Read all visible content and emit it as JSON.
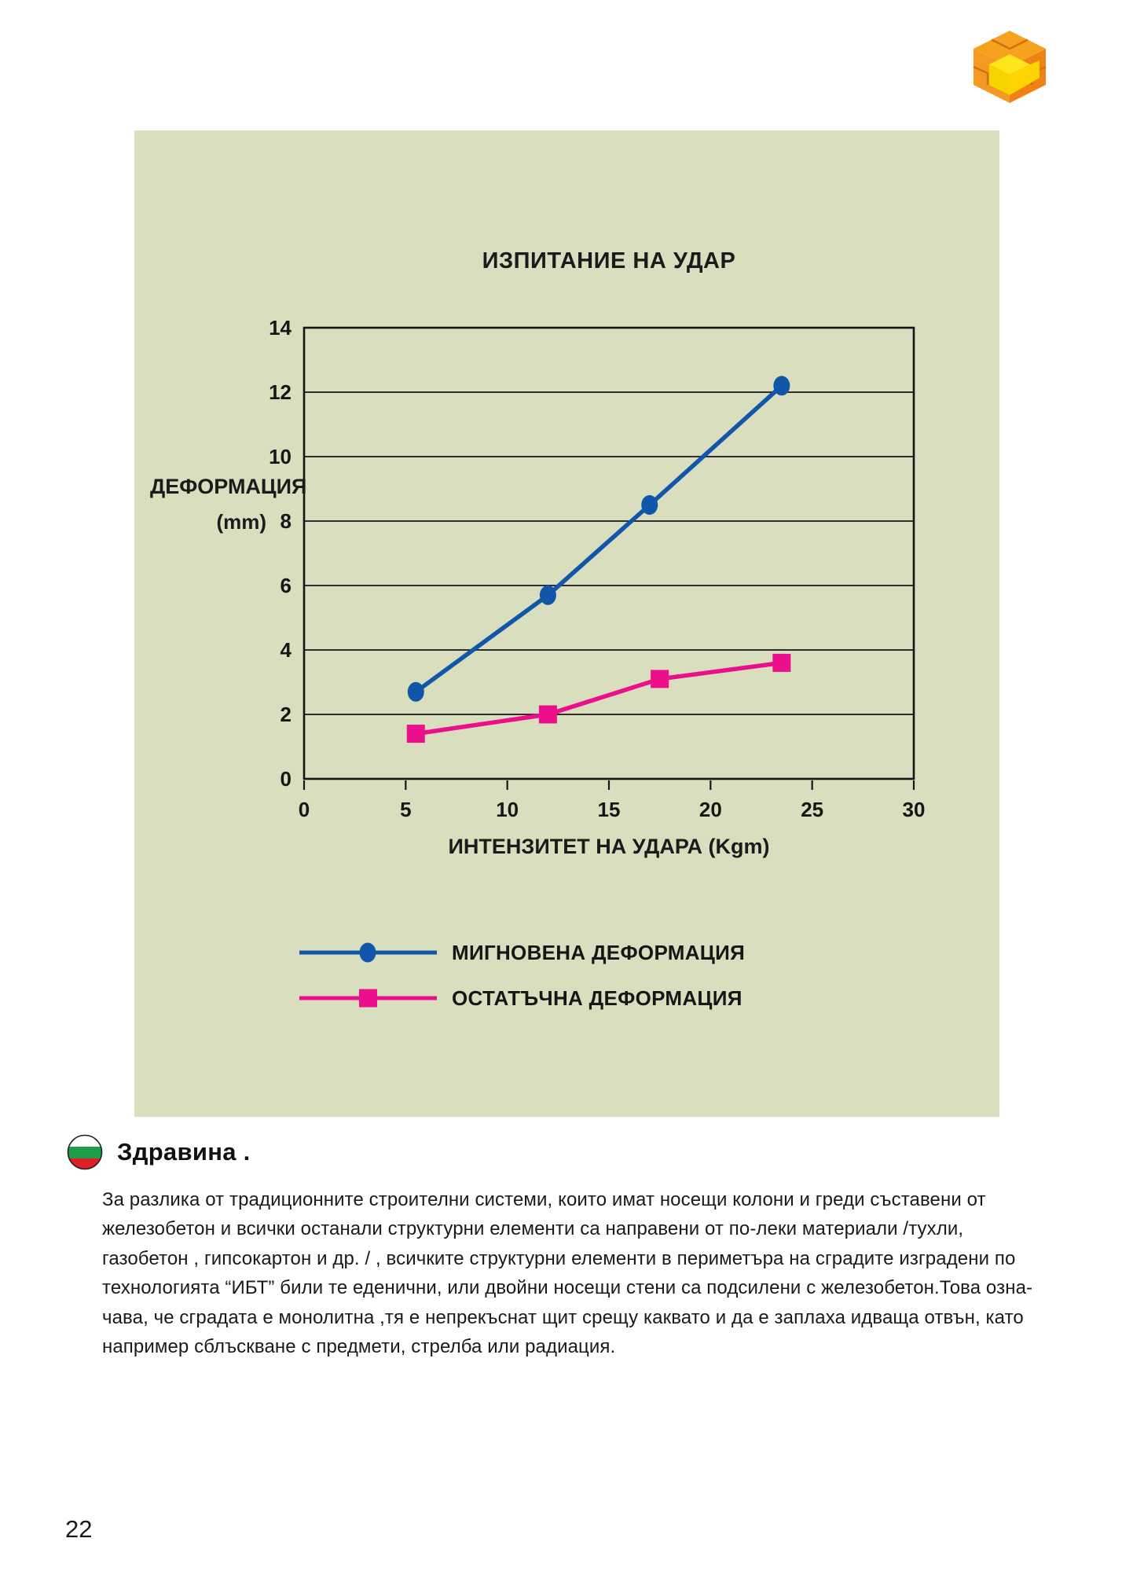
{
  "page": {
    "number": "22"
  },
  "icons": {
    "logo": "puzzle-cube-logo",
    "section_bullet": "bulgaria-flag-circle"
  },
  "colors": {
    "panel_bg": "#d9dfbe",
    "series_blue": "#1156a8",
    "series_pink": "#ec0f8c",
    "logo_orange": "#f29222",
    "logo_yellow": "#ffe312",
    "flag_white": "#ffffff",
    "flag_green": "#1e9e49",
    "flag_red": "#df1f26"
  },
  "chart_data": {
    "type": "line",
    "title": "ИЗПИТАНИЕ НА УДАР",
    "xlabel": "ИНТЕНЗИТЕТ НА УДАРА (Kgm)",
    "ylabel": "ДЕФОРМАЦИЯ",
    "ylabel_units": "(mm)",
    "xlim": [
      0,
      30
    ],
    "ylim": [
      0,
      14
    ],
    "xticks": [
      0,
      5,
      10,
      15,
      20,
      25,
      30
    ],
    "yticks": [
      0,
      2,
      4,
      6,
      8,
      10,
      12,
      14
    ],
    "grid": "horizontal",
    "legend_position": "below-chart",
    "series": [
      {
        "name": "МИГНОВЕНА ДЕФОРМАЦИЯ",
        "color": "#1156a8",
        "marker": "circle",
        "x": [
          5.5,
          12,
          17,
          23.5
        ],
        "y": [
          2.7,
          5.7,
          8.5,
          12.2
        ]
      },
      {
        "name": "ОСТАТЪЧНА ДЕФОРМАЦИЯ",
        "color": "#ec0f8c",
        "marker": "square",
        "x": [
          5.5,
          12,
          17.5,
          23.5
        ],
        "y": [
          1.4,
          2.0,
          3.1,
          3.6
        ]
      }
    ]
  },
  "section": {
    "heading": "Здравина .",
    "body_lines": [
      "За разлика от традиционните строителни системи, които имат носещи колони и греди съставени от",
      "железобетон и всички останали структурни елементи са направени от по-леки материали /тухли,",
      "газобетон , гипсокартон и др. / , всичките структурни елементи в периметъра на сградите изградени по",
      "технологията “ИБТ” били те еденични, или двойни носещи стени са подсилени с железобетон.Това озна-",
      "чава, че сградата е монолитна ,тя е непрекъснат щит срещу каквато и да е заплаха идваща отвън, като",
      "например сблъскване с предмети, стрелба или радиация."
    ]
  }
}
